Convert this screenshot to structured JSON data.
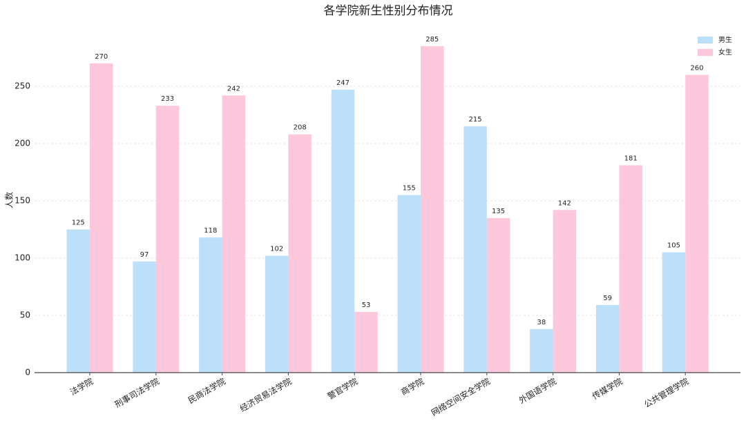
{
  "chart_data": {
    "type": "grouped_bar",
    "title": "各学院新生性别分布情况",
    "ylabel": "人数",
    "categories": [
      "法学院",
      "刑事司法学院",
      "民商法学院",
      "经济贸易法学院",
      "警官学院",
      "商学院",
      "网络空间安全学院",
      "外国语学院",
      "传媒学院",
      "公共管理学院"
    ],
    "series": [
      {
        "name": "男生",
        "color": "#bde0fa",
        "values": [
          125,
          97,
          118,
          102,
          247,
          155,
          215,
          38,
          59,
          105
        ]
      },
      {
        "name": "女生",
        "color": "#fdc8dc",
        "values": [
          270,
          233,
          242,
          208,
          53,
          285,
          135,
          142,
          181,
          260
        ]
      }
    ],
    "ylim": [
      0,
      300
    ],
    "yticks": [
      0,
      50,
      100,
      150,
      200,
      250
    ],
    "grid": true,
    "legend": "upper right"
  }
}
